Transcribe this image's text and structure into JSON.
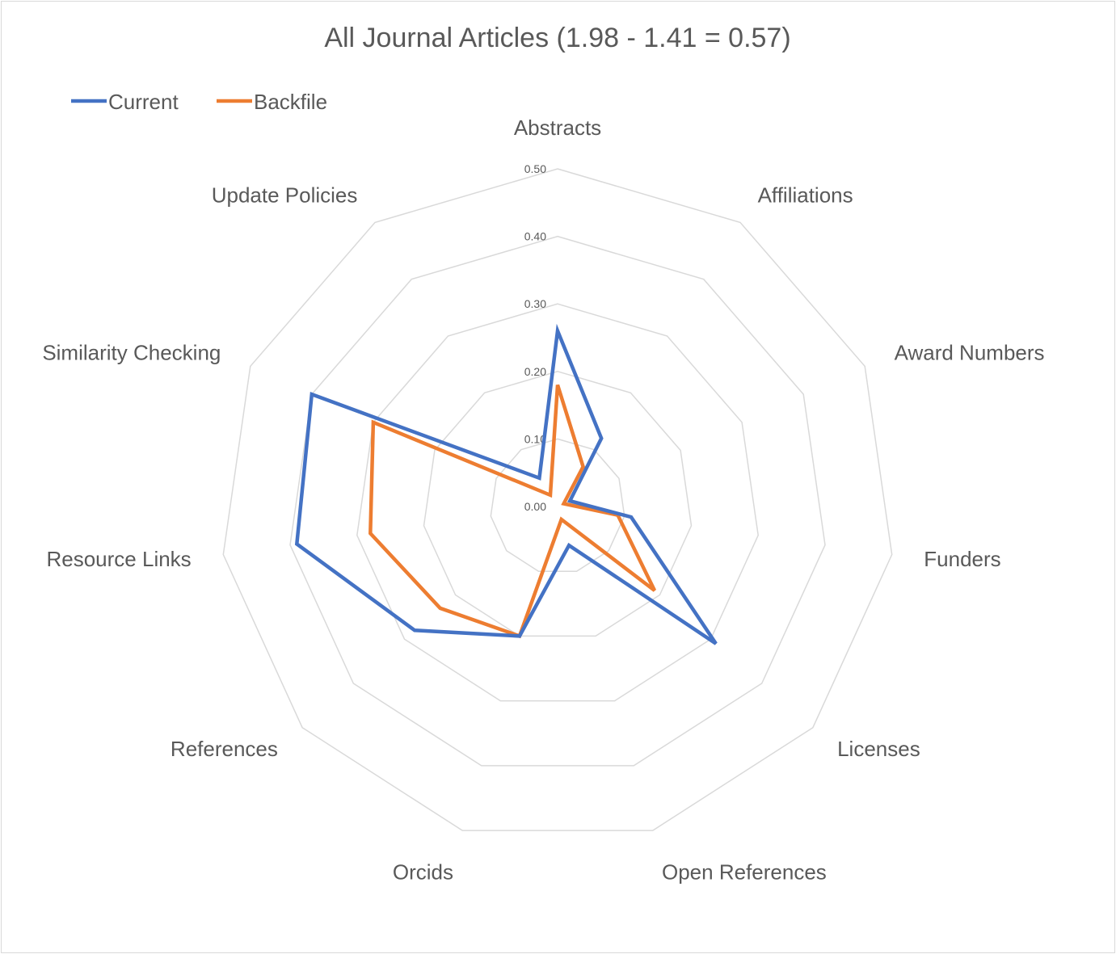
{
  "chart_data": {
    "type": "radar",
    "title": "All Journal Articles (1.98 - 1.41 = 0.57)",
    "categories": [
      "Abstracts",
      "Affiliations",
      "Award Numbers",
      "Funders",
      "Licenses",
      "Open References",
      "Orcids",
      "References",
      "Resource Links",
      "Similarity Checking",
      "Update Policies"
    ],
    "tick_labels": [
      "0.00",
      "0.10",
      "0.20",
      "0.30",
      "0.40",
      "0.50"
    ],
    "rlim": [
      0,
      0.5
    ],
    "grid": true,
    "legend_position": "top-left",
    "series": [
      {
        "name": "Current",
        "color": "#4472C4",
        "values": [
          0.26,
          0.12,
          0.02,
          0.11,
          0.31,
          0.06,
          0.2,
          0.28,
          0.39,
          0.4,
          0.05
        ]
      },
      {
        "name": "Backfile",
        "color": "#ED7D31",
        "values": [
          0.18,
          0.07,
          0.01,
          0.09,
          0.19,
          0.02,
          0.2,
          0.23,
          0.28,
          0.3,
          0.02
        ]
      }
    ]
  }
}
